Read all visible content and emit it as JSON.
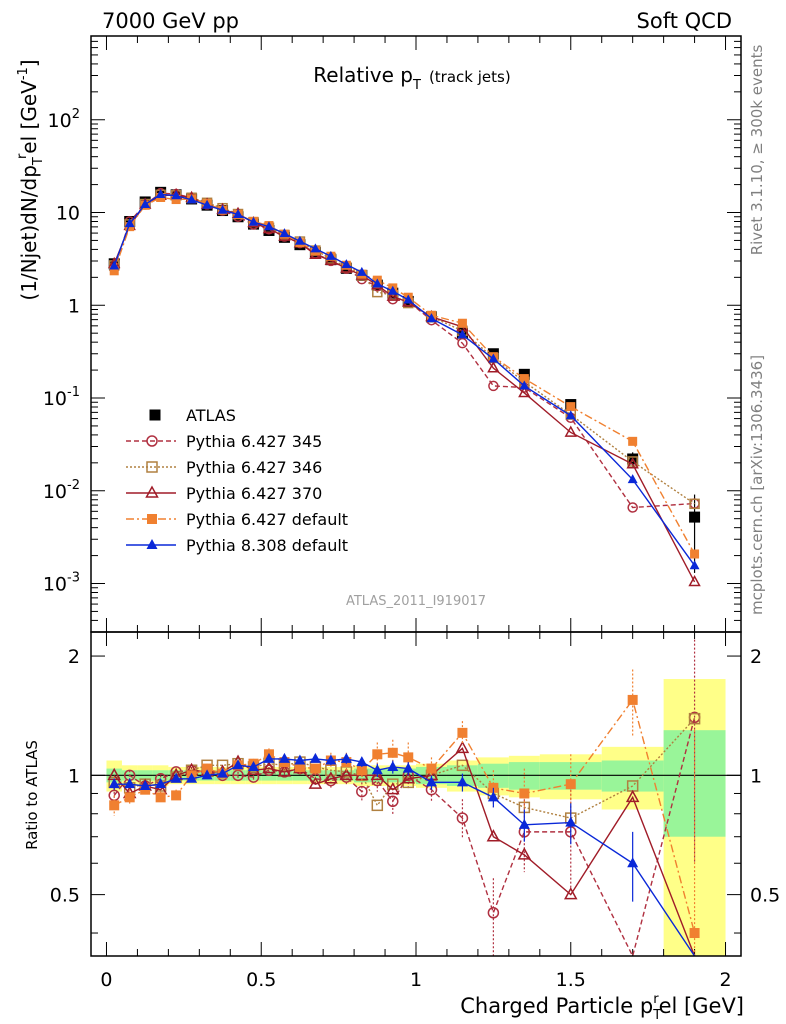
{
  "header": {
    "left": "7000 GeV pp",
    "right": "Soft QCD"
  },
  "side_text": {
    "rivet": "Rivet 3.1.10, ≥ 300k events",
    "mcplots": "mcplots.cern.ch [arXiv:1306.3436]"
  },
  "chart_data": {
    "type": "scatter",
    "title": "Relative p_T",
    "title_main": "Relative p",
    "title_sub": "T",
    "title_extra": "(track jets)",
    "analysis_id": "ATLAS_2011_I919017",
    "ylabel_main": "(1/Njet)dN/dp",
    "ylabel_sub": "T",
    "ylabel_sup": "r",
    "ylabel_tail": "el [GeV",
    "ylabel_unit_sup": "-1",
    "ylabel_close": "]",
    "ratio_ylabel": "Ratio to ATLAS",
    "xlabel_main": "Charged Particle p",
    "xlabel_sub": "T",
    "xlabel_sup": "r",
    "xlabel_tail": "el [GeV]",
    "xlim": [
      -0.05,
      2.05
    ],
    "ylim": [
      0.0003,
      800
    ],
    "yscale": "log",
    "ratio_ylim": [
      0.35,
      2.3
    ],
    "x_ticks": [
      "0",
      "0.5",
      "1",
      "1.5",
      "2"
    ],
    "y_ticks": [
      {
        "base": "10",
        "exp": "-3"
      },
      {
        "base": "10",
        "exp": "-2"
      },
      {
        "base": "10",
        "exp": "-1"
      },
      {
        "base": "1",
        "exp": ""
      },
      {
        "base": "10",
        "exp": ""
      },
      {
        "base": "10",
        "exp": "2"
      }
    ],
    "ratio_ticks": [
      "0.5",
      "1",
      "2"
    ],
    "legend_position": "lower-left",
    "x": [
      0.025,
      0.075,
      0.125,
      0.175,
      0.225,
      0.275,
      0.325,
      0.375,
      0.425,
      0.475,
      0.525,
      0.575,
      0.625,
      0.675,
      0.725,
      0.775,
      0.825,
      0.875,
      0.925,
      0.975,
      1.05,
      1.15,
      1.25,
      1.35,
      1.5,
      1.7,
      1.9
    ],
    "x_bins": [
      0.0,
      0.05,
      0.1,
      0.15,
      0.2,
      0.25,
      0.3,
      0.35,
      0.4,
      0.45,
      0.5,
      0.55,
      0.6,
      0.65,
      0.7,
      0.75,
      0.8,
      0.85,
      0.9,
      0.95,
      1.0,
      1.1,
      1.2,
      1.3,
      1.4,
      1.6,
      1.8,
      2.0
    ],
    "data": {
      "name": "ATLAS",
      "color": "#000000",
      "values": [
        2.8,
        8.0,
        13.0,
        16.5,
        15.5,
        14.0,
        12.0,
        10.5,
        9.0,
        7.5,
        6.4,
        5.4,
        4.5,
        3.7,
        3.1,
        2.5,
        2.1,
        1.65,
        1.35,
        1.1,
        0.75,
        0.5,
        0.3,
        0.18,
        0.085,
        0.022,
        0.0052
      ],
      "band_inner": [
        0.04,
        0.03,
        0.03,
        0.03,
        0.03,
        0.03,
        0.03,
        0.03,
        0.03,
        0.03,
        0.03,
        0.03,
        0.03,
        0.03,
        0.03,
        0.03,
        0.04,
        0.04,
        0.04,
        0.04,
        0.05,
        0.06,
        0.07,
        0.08,
        0.08,
        0.09,
        0.3
      ],
      "band_outer": [
        0.09,
        0.06,
        0.06,
        0.06,
        0.05,
        0.05,
        0.05,
        0.05,
        0.05,
        0.05,
        0.05,
        0.05,
        0.05,
        0.05,
        0.05,
        0.05,
        0.06,
        0.06,
        0.06,
        0.06,
        0.07,
        0.09,
        0.11,
        0.12,
        0.13,
        0.18,
        0.75
      ]
    },
    "series": [
      {
        "name": "Pythia 6.427 345",
        "color": "#b03040",
        "marker": "open-circle",
        "dash": "5,3",
        "ratio": [
          0.89,
          1.0,
          0.94,
          0.98,
          1.02,
          1.03,
          1.02,
          1.0,
          1.0,
          0.99,
          1.03,
          1.02,
          1.04,
          0.98,
          0.97,
          0.99,
          0.91,
          0.97,
          0.86,
          1.0,
          0.92,
          0.78,
          0.45,
          0.72,
          0.72,
          0.3,
          1.4
        ],
        "ratio_err": [
          0.04,
          0.03,
          0.03,
          0.02,
          0.02,
          0.02,
          0.02,
          0.02,
          0.02,
          0.02,
          0.02,
          0.02,
          0.03,
          0.03,
          0.04,
          0.04,
          0.05,
          0.06,
          0.07,
          0.08,
          0.06,
          0.09,
          0.1,
          0.15,
          0.2,
          0.4,
          0.8
        ]
      },
      {
        "name": "Pythia 6.427 346",
        "color": "#b08040",
        "marker": "open-square",
        "dash": "2,2",
        "ratio": [
          0.96,
          0.93,
          0.95,
          0.94,
          0.99,
          1.03,
          1.06,
          1.06,
          1.07,
          1.05,
          1.07,
          1.06,
          1.08,
          1.05,
          1.03,
          1.02,
          1.0,
          0.84,
          0.95,
          0.96,
          1.0,
          1.06,
          0.9,
          0.83,
          0.78,
          0.94,
          1.39
        ]
      },
      {
        "name": "Pythia 6.427 370",
        "color": "#a01c28",
        "marker": "open-triangle",
        "dash": "",
        "ratio": [
          1.0,
          0.9,
          0.94,
          0.92,
          1.0,
          1.03,
          1.02,
          1.02,
          1.08,
          1.03,
          1.04,
          1.02,
          1.04,
          0.95,
          0.98,
          1.0,
          1.0,
          1.0,
          0.92,
          0.98,
          1.0,
          1.17,
          0.7,
          0.63,
          0.5,
          0.88,
          0.2
        ]
      },
      {
        "name": "Pythia 6.427 default",
        "color": "#f08030",
        "marker": "filled-square",
        "dash": "8,3,2,3",
        "ratio": [
          0.84,
          0.88,
          0.92,
          0.88,
          0.89,
          1.0,
          1.04,
          1.01,
          1.06,
          1.07,
          1.13,
          1.08,
          1.05,
          1.04,
          1.09,
          1.08,
          1.03,
          1.13,
          1.14,
          1.11,
          1.04,
          1.28,
          0.93,
          0.9,
          0.95,
          1.55,
          0.4
        ],
        "ratio_err": [
          0.05,
          0.04,
          0.03,
          0.03,
          0.03,
          0.03,
          0.03,
          0.03,
          0.03,
          0.03,
          0.04,
          0.04,
          0.04,
          0.05,
          0.05,
          0.06,
          0.07,
          0.08,
          0.09,
          0.1,
          0.07,
          0.09,
          0.1,
          0.14,
          0.18,
          0.3,
          0.9
        ]
      },
      {
        "name": "Pythia 8.308 default",
        "color": "#0a28d8",
        "marker": "filled-triangle",
        "dash": "",
        "ratio": [
          0.95,
          0.95,
          0.94,
          0.95,
          0.98,
          0.98,
          1.0,
          1.01,
          1.06,
          1.05,
          1.1,
          1.1,
          1.09,
          1.1,
          1.09,
          1.1,
          1.08,
          1.03,
          1.05,
          1.04,
          0.96,
          0.96,
          0.88,
          0.75,
          0.76,
          0.6,
          0.3
        ],
        "ratio_err": [
          0.03,
          0.02,
          0.02,
          0.02,
          0.02,
          0.02,
          0.02,
          0.02,
          0.02,
          0.02,
          0.02,
          0.02,
          0.02,
          0.02,
          0.03,
          0.03,
          0.03,
          0.04,
          0.04,
          0.04,
          0.04,
          0.05,
          0.05,
          0.07,
          0.09,
          0.12,
          0.2
        ]
      }
    ]
  }
}
